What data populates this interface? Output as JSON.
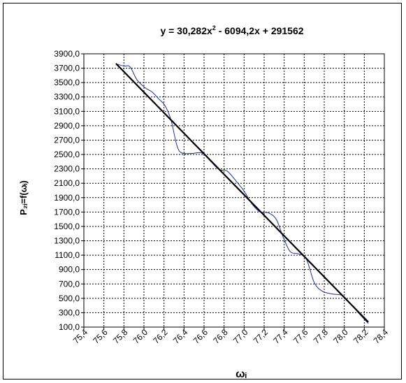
{
  "chart_data": {
    "type": "line",
    "title": "y = 30,282x² - 6094,2x + 291562",
    "title_parts": {
      "pre": "y = 30,282x",
      "sup": "2",
      "post": " - 6094,2x + 291562"
    },
    "xlabel": "ωᵢ",
    "ylabel": "P₂ᵢ=f(ωᵢ)",
    "xlim": [
      75.4,
      78.4
    ],
    "ylim": [
      100,
      3900
    ],
    "x_ticks": [
      "75,4",
      "75,6",
      "75,8",
      "76,0",
      "76,2",
      "76,4",
      "76,6",
      "76,8",
      "77,0",
      "77,2",
      "77,4",
      "77,6",
      "77,8",
      "78,0",
      "78,2",
      "78,4"
    ],
    "y_ticks": [
      "3900,0",
      "3700,0",
      "3500,0",
      "3300,0",
      "3100,0",
      "2900,0",
      "2700,0",
      "2500,0",
      "2300,0",
      "2100,0",
      "1900,0",
      "1700,0",
      "1500,0",
      "1300,0",
      "1100,0",
      "900,0",
      "700,0",
      "500,0",
      "300,0",
      "100,0"
    ],
    "grid": true,
    "legend": "none",
    "series": [
      {
        "style": "thin-blue",
        "color": "#1f2f8f",
        "x": [
          75.72,
          75.8,
          75.86,
          75.93,
          76.01,
          76.08,
          76.15,
          76.21,
          76.27,
          76.33,
          76.38,
          76.48,
          76.58,
          76.67,
          76.75,
          76.83,
          76.92,
          77.0,
          77.08,
          77.16,
          77.24,
          77.32,
          77.39,
          77.46,
          77.54,
          77.62,
          77.7,
          77.78,
          77.88,
          77.98,
          78.06,
          78.14,
          78.24
        ],
        "y": [
          3760,
          3730,
          3720,
          3540,
          3430,
          3370,
          3270,
          3180,
          2980,
          2620,
          2520,
          2515,
          2520,
          2400,
          2290,
          2270,
          2130,
          1990,
          1810,
          1700,
          1690,
          1600,
          1350,
          1150,
          1120,
          1050,
          720,
          600,
          560,
          540,
          430,
          300,
          150
        ]
      },
      {
        "style": "trend",
        "color": "#000000",
        "x": [
          75.72,
          78.24
        ],
        "y": [
          3765,
          170
        ]
      }
    ]
  }
}
